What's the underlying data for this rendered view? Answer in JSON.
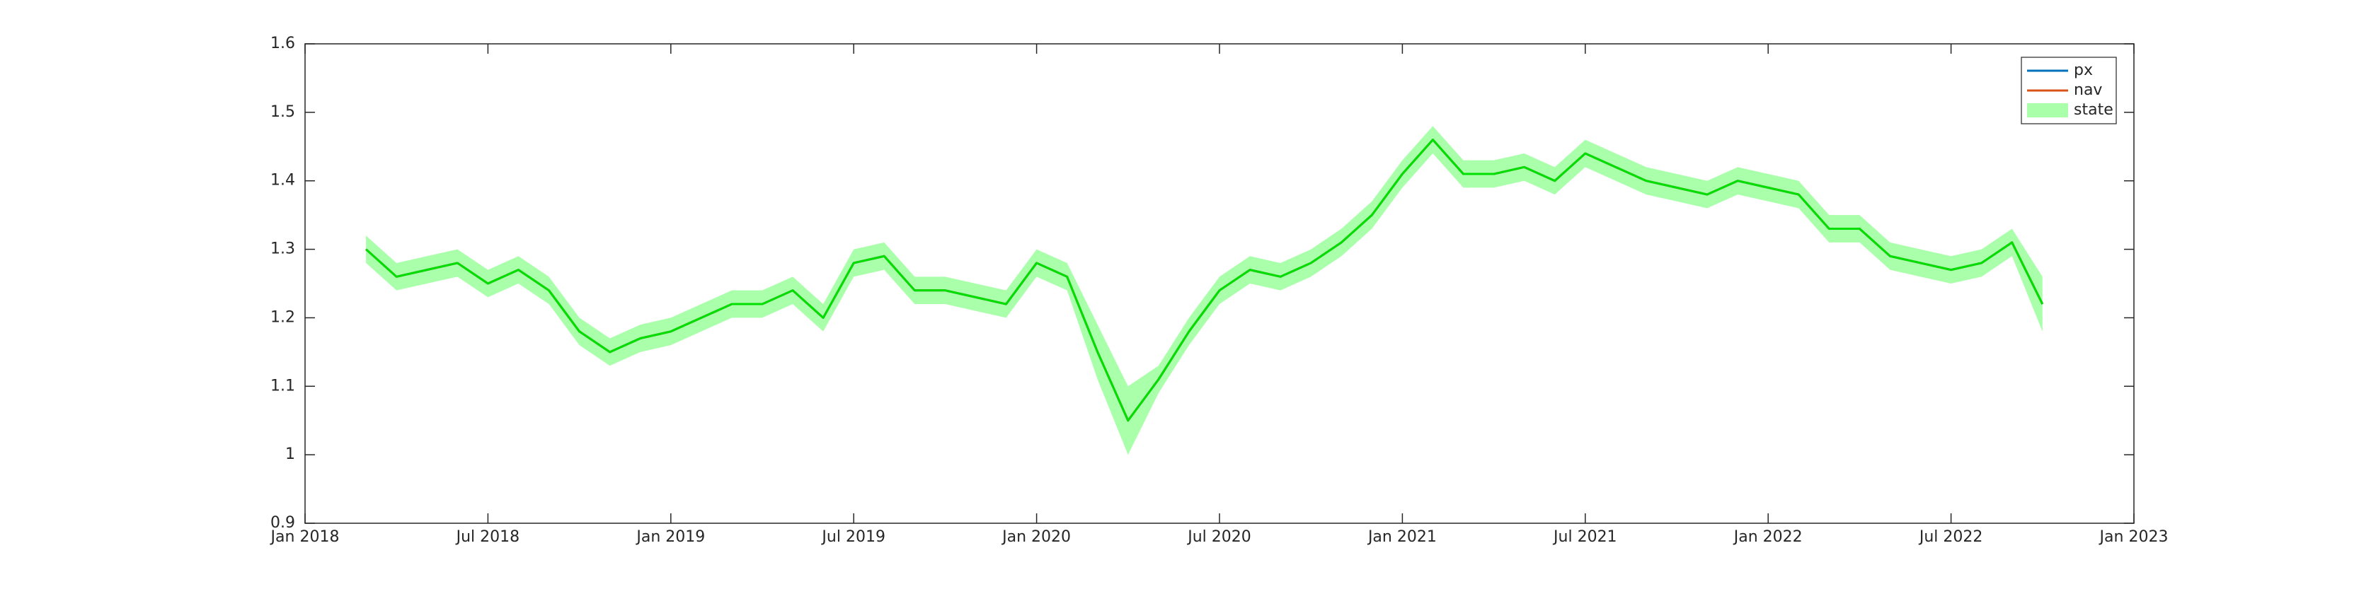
{
  "chart_data": {
    "type": "line",
    "x": [
      "2018-03",
      "2018-04",
      "2018-05",
      "2018-06",
      "2018-07",
      "2018-08",
      "2018-09",
      "2018-10",
      "2018-11",
      "2018-12",
      "2019-01",
      "2019-02",
      "2019-03",
      "2019-04",
      "2019-05",
      "2019-06",
      "2019-07",
      "2019-08",
      "2019-09",
      "2019-10",
      "2019-11",
      "2019-12",
      "2020-01",
      "2020-02",
      "2020-03",
      "2020-04",
      "2020-05",
      "2020-06",
      "2020-07",
      "2020-08",
      "2020-09",
      "2020-10",
      "2020-11",
      "2020-12",
      "2021-01",
      "2021-02",
      "2021-03",
      "2021-04",
      "2021-05",
      "2021-06",
      "2021-07",
      "2021-08",
      "2021-09",
      "2021-10",
      "2021-11",
      "2021-12",
      "2022-01",
      "2022-02",
      "2022-03",
      "2022-04",
      "2022-05",
      "2022-06",
      "2022-07",
      "2022-08",
      "2022-09",
      "2022-10"
    ],
    "series": [
      {
        "name": "px",
        "color": "#0072bd",
        "values": [
          1.3,
          1.26,
          1.27,
          1.28,
          1.25,
          1.27,
          1.24,
          1.18,
          1.15,
          1.17,
          1.18,
          1.2,
          1.22,
          1.22,
          1.24,
          1.2,
          1.28,
          1.29,
          1.24,
          1.24,
          1.23,
          1.22,
          1.28,
          1.26,
          1.15,
          1.05,
          1.11,
          1.18,
          1.24,
          1.27,
          1.26,
          1.28,
          1.31,
          1.35,
          1.41,
          1.46,
          1.41,
          1.41,
          1.42,
          1.4,
          1.44,
          1.42,
          1.4,
          1.39,
          1.38,
          1.4,
          1.39,
          1.38,
          1.33,
          1.33,
          1.29,
          1.28,
          1.27,
          1.28,
          1.31,
          1.22
        ]
      },
      {
        "name": "nav",
        "color": "#d95319",
        "values": [
          1.3,
          1.26,
          1.27,
          1.28,
          1.25,
          1.27,
          1.24,
          1.18,
          1.15,
          1.17,
          1.18,
          1.2,
          1.22,
          1.22,
          1.24,
          1.2,
          1.28,
          1.29,
          1.24,
          1.24,
          1.23,
          1.22,
          1.28,
          1.26,
          1.15,
          1.05,
          1.11,
          1.18,
          1.24,
          1.27,
          1.26,
          1.28,
          1.31,
          1.35,
          1.41,
          1.46,
          1.41,
          1.41,
          1.42,
          1.4,
          1.44,
          1.42,
          1.4,
          1.39,
          1.38,
          1.4,
          1.39,
          1.38,
          1.33,
          1.33,
          1.29,
          1.28,
          1.27,
          1.28,
          1.31,
          1.22
        ]
      },
      {
        "name": "state",
        "color": "#00e000",
        "band_color": "#aaffaa",
        "values": [
          1.3,
          1.26,
          1.27,
          1.28,
          1.25,
          1.27,
          1.24,
          1.18,
          1.15,
          1.17,
          1.18,
          1.2,
          1.22,
          1.22,
          1.24,
          1.2,
          1.28,
          1.29,
          1.24,
          1.24,
          1.23,
          1.22,
          1.28,
          1.26,
          1.15,
          1.05,
          1.11,
          1.18,
          1.24,
          1.27,
          1.26,
          1.28,
          1.31,
          1.35,
          1.41,
          1.46,
          1.41,
          1.41,
          1.42,
          1.4,
          1.44,
          1.42,
          1.4,
          1.39,
          1.38,
          1.4,
          1.39,
          1.38,
          1.33,
          1.33,
          1.29,
          1.28,
          1.27,
          1.28,
          1.31,
          1.22
        ],
        "lower": [
          1.28,
          1.24,
          1.25,
          1.26,
          1.23,
          1.25,
          1.22,
          1.16,
          1.13,
          1.15,
          1.16,
          1.18,
          1.2,
          1.2,
          1.22,
          1.18,
          1.26,
          1.27,
          1.22,
          1.22,
          1.21,
          1.2,
          1.26,
          1.24,
          1.11,
          1.0,
          1.09,
          1.16,
          1.22,
          1.25,
          1.24,
          1.26,
          1.29,
          1.33,
          1.39,
          1.44,
          1.39,
          1.39,
          1.4,
          1.38,
          1.42,
          1.4,
          1.38,
          1.37,
          1.36,
          1.38,
          1.37,
          1.36,
          1.31,
          1.31,
          1.27,
          1.26,
          1.25,
          1.26,
          1.29,
          1.18
        ],
        "upper": [
          1.32,
          1.28,
          1.29,
          1.3,
          1.27,
          1.29,
          1.26,
          1.2,
          1.17,
          1.19,
          1.2,
          1.22,
          1.24,
          1.24,
          1.26,
          1.22,
          1.3,
          1.31,
          1.26,
          1.26,
          1.25,
          1.24,
          1.3,
          1.28,
          1.19,
          1.1,
          1.13,
          1.2,
          1.26,
          1.29,
          1.28,
          1.3,
          1.33,
          1.37,
          1.43,
          1.48,
          1.43,
          1.43,
          1.44,
          1.42,
          1.46,
          1.44,
          1.42,
          1.41,
          1.4,
          1.42,
          1.41,
          1.4,
          1.35,
          1.35,
          1.31,
          1.3,
          1.29,
          1.3,
          1.33,
          1.26
        ]
      }
    ],
    "xlim": [
      "2018-01",
      "2023-01"
    ],
    "xticks": [
      {
        "value": "2018-01",
        "label": "Jan 2018"
      },
      {
        "value": "2018-07",
        "label": "Jul 2018"
      },
      {
        "value": "2019-01",
        "label": "Jan 2019"
      },
      {
        "value": "2019-07",
        "label": "Jul 2019"
      },
      {
        "value": "2020-01",
        "label": "Jan 2020"
      },
      {
        "value": "2020-07",
        "label": "Jul 2020"
      },
      {
        "value": "2021-01",
        "label": "Jan 2021"
      },
      {
        "value": "2021-07",
        "label": "Jul 2021"
      },
      {
        "value": "2022-01",
        "label": "Jan 2022"
      },
      {
        "value": "2022-07",
        "label": "Jul 2022"
      },
      {
        "value": "2023-01",
        "label": "Jan 2023"
      }
    ],
    "ylim": [
      0.9,
      1.6
    ],
    "yticks": [
      0.9,
      1,
      1.1,
      1.2,
      1.3,
      1.4,
      1.5,
      1.6
    ],
    "legend": "northeast"
  }
}
